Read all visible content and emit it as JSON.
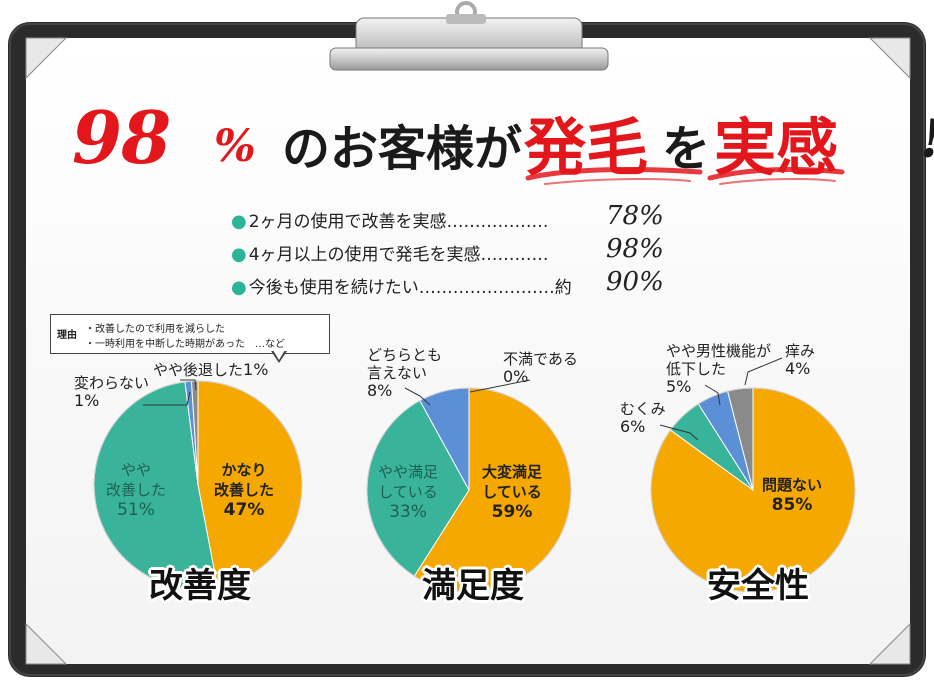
{
  "headline": {
    "number": "98",
    "percent_sign": "%",
    "text_1": "のお客様が",
    "accent_1": "発毛",
    "text_2": "を",
    "accent_2": "実感",
    "exclamation": "!"
  },
  "stats": [
    {
      "label": "2ヶ月の使用で改善を実感………………",
      "value": "78%"
    },
    {
      "label": "4ヶ月以上の使用で発毛を実感…………",
      "value": "98%"
    },
    {
      "label": "今後も使用を続けたい……………………約",
      "value": "90%"
    }
  ],
  "note": {
    "label": "理由",
    "line1": "・改善したので利用を減らした",
    "line2": "・一時利用を中断した時期があった　…など"
  },
  "colors": {
    "orange": "#f5a800",
    "teal": "#39b39a",
    "blue": "#5b8fd6",
    "gray": "#8a8a8a",
    "red": "#e3161c",
    "board": "#2b2b2b"
  },
  "charts": {
    "kaizen": {
      "title": "改善度",
      "slices": [
        {
          "label_1": "かなり",
          "label_2": "改善した",
          "pct": "47%"
        },
        {
          "label_1": "やや",
          "label_2": "改善した",
          "pct": "51%"
        },
        {
          "label_1": "変わらない",
          "pct": "1%"
        },
        {
          "label_1": "やや後退した",
          "pct": "1%"
        }
      ]
    },
    "manzoku": {
      "title": "満足度",
      "slices": [
        {
          "label_1": "大変満足",
          "label_2": "している",
          "pct": "59%"
        },
        {
          "label_1": "やや満足",
          "label_2": "している",
          "pct": "33%"
        },
        {
          "label_1": "どちらとも",
          "label_2": "言えない",
          "pct": "8%"
        },
        {
          "label_1": "不満である",
          "pct": "0%"
        }
      ]
    },
    "anzen": {
      "title": "安全性",
      "slices": [
        {
          "label_1": "問題ない",
          "pct": "85%"
        },
        {
          "label_1": "むくみ",
          "pct": "6%"
        },
        {
          "label_1": "やや男性機能が",
          "label_2": "低下した",
          "pct": "5%"
        },
        {
          "label_1": "痒み",
          "pct": "4%"
        }
      ]
    }
  },
  "chart_data": [
    {
      "type": "pie",
      "title": "改善度",
      "categories": [
        "かなり改善した",
        "やや改善した",
        "変わらない",
        "やや後退した"
      ],
      "values": [
        47,
        51,
        1,
        1
      ]
    },
    {
      "type": "pie",
      "title": "満足度",
      "categories": [
        "大変満足している",
        "やや満足している",
        "どちらとも言えない",
        "不満である"
      ],
      "values": [
        59,
        33,
        8,
        0
      ]
    },
    {
      "type": "pie",
      "title": "安全性",
      "categories": [
        "問題ない",
        "むくみ",
        "やや男性機能が低下した",
        "痒み"
      ],
      "values": [
        85,
        6,
        5,
        4
      ]
    }
  ]
}
